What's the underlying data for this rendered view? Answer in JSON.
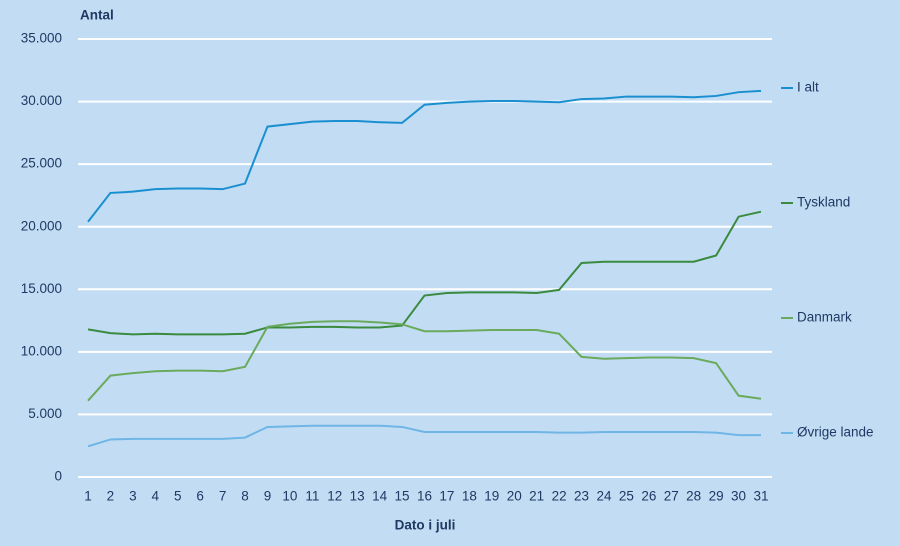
{
  "chart_data": {
    "type": "line",
    "ylabel": "Antal",
    "xlabel": "Dato i juli",
    "x": [
      1,
      2,
      3,
      4,
      5,
      6,
      7,
      8,
      9,
      10,
      11,
      12,
      13,
      14,
      15,
      16,
      17,
      18,
      19,
      20,
      21,
      22,
      23,
      24,
      25,
      26,
      27,
      28,
      29,
      30,
      31
    ],
    "xlim": [
      1,
      31
    ],
    "xticks": [
      1,
      2,
      3,
      4,
      5,
      6,
      7,
      8,
      9,
      10,
      11,
      12,
      13,
      14,
      15,
      16,
      17,
      18,
      19,
      20,
      21,
      22,
      23,
      24,
      25,
      26,
      27,
      28,
      29,
      30,
      31
    ],
    "ylim": [
      0,
      35000
    ],
    "yticks": [
      0,
      {
        "value": 5000,
        "label": "5.000"
      },
      {
        "value": 10000,
        "label": "10.000"
      },
      {
        "value": 15000,
        "label": "15.000"
      },
      {
        "value": 20000,
        "label": "20.000"
      },
      {
        "value": 25000,
        "label": "25.000"
      },
      {
        "value": 30000,
        "label": "30.000"
      },
      {
        "value": 35000,
        "label": "35.000"
      }
    ],
    "grid": true,
    "legend": "right",
    "series": [
      {
        "name": "I alt",
        "color": "#1a8fd0",
        "values": [
          20400,
          22700,
          22800,
          23000,
          23050,
          23050,
          23000,
          23450,
          28000,
          28200,
          28400,
          28450,
          28450,
          28350,
          28300,
          29750,
          29900,
          30000,
          30050,
          30050,
          30000,
          29950,
          30200,
          30250,
          30400,
          30400,
          30400,
          30350,
          30450,
          30750,
          30850
        ]
      },
      {
        "name": "Tyskland",
        "color": "#3a8a3f",
        "values": [
          11800,
          11500,
          11400,
          11450,
          11400,
          11400,
          11400,
          11450,
          11950,
          11950,
          12000,
          12000,
          11950,
          11950,
          12100,
          14500,
          14700,
          14750,
          14750,
          14750,
          14700,
          14950,
          17100,
          17200,
          17200,
          17200,
          17200,
          17200,
          17700,
          20800,
          21200
        ]
      },
      {
        "name": "Danmark",
        "color": "#6aaa5c",
        "values": [
          6100,
          8100,
          8300,
          8450,
          8500,
          8500,
          8450,
          8800,
          12000,
          12250,
          12400,
          12450,
          12450,
          12350,
          12200,
          11650,
          11650,
          11700,
          11750,
          11750,
          11750,
          11450,
          9600,
          9450,
          9500,
          9550,
          9550,
          9500,
          9100,
          6500,
          6250
        ]
      },
      {
        "name": "Øvrige lande",
        "color": "#6fb5e6",
        "values": [
          2450,
          3000,
          3050,
          3050,
          3050,
          3050,
          3050,
          3150,
          4000,
          4050,
          4100,
          4100,
          4100,
          4100,
          4000,
          3600,
          3600,
          3600,
          3600,
          3600,
          3600,
          3550,
          3550,
          3600,
          3600,
          3600,
          3600,
          3600,
          3550,
          3350,
          3350
        ]
      }
    ]
  }
}
